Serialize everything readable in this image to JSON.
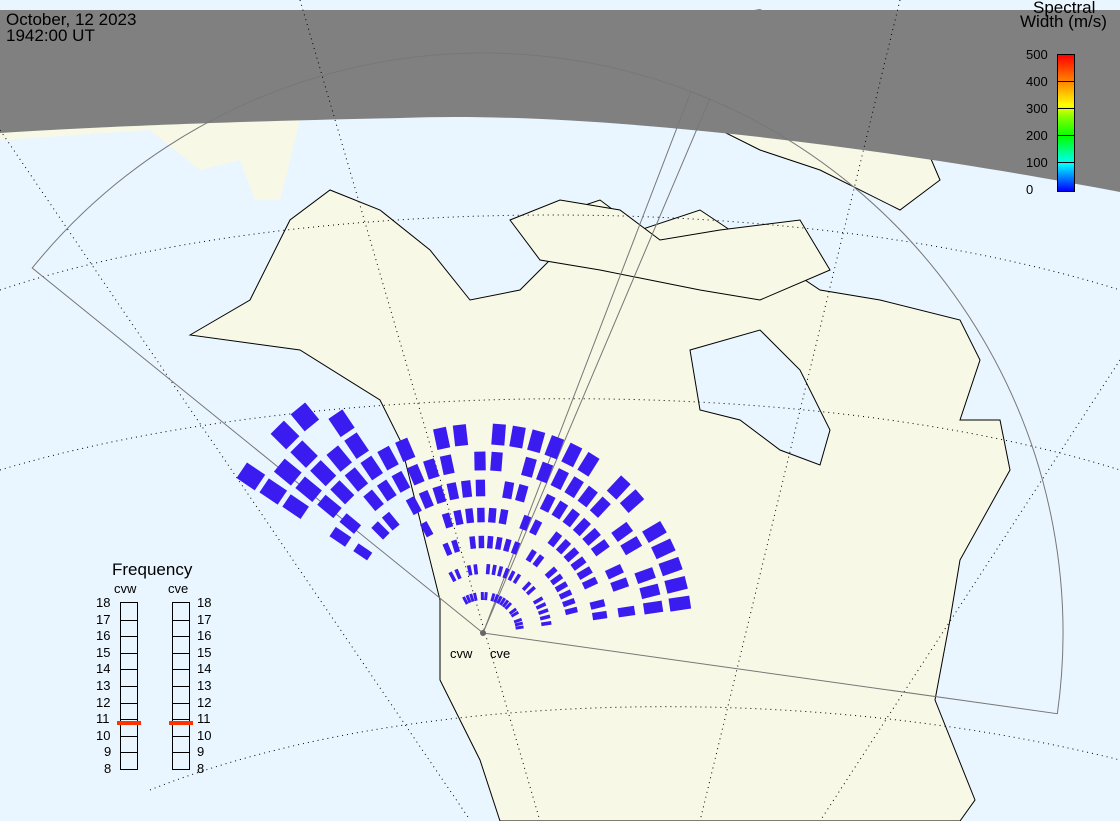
{
  "header": {
    "date": "October, 12 2023",
    "time": "1942:00 UT"
  },
  "colorbar": {
    "title_line1": "Spectral",
    "title_line2": "Width (m/s)",
    "ticks": [
      "500",
      "400",
      "300",
      "200",
      "100",
      "0"
    ],
    "range": [
      0,
      500
    ],
    "colors": [
      "#0000ff",
      "#00ffff",
      "#00ff00",
      "#ffff00",
      "#ff8800",
      "#ff0000"
    ]
  },
  "frequency": {
    "title": "Frequency",
    "radars": [
      {
        "name": "cvw",
        "value_mhz": 10.8
      },
      {
        "name": "cve",
        "value_mhz": 10.8
      }
    ],
    "ticks": [
      "18",
      "17",
      "16",
      "15",
      "14",
      "13",
      "12",
      "11",
      "10",
      "9",
      "8"
    ],
    "range": [
      8,
      18
    ],
    "marker_color": "#ff3300"
  },
  "map": {
    "radar_labels": [
      "cvw",
      "cve"
    ],
    "scatter_color": "#3a1cf0",
    "land_color": "#f8f8e6",
    "ocean_color": "#eaf6ff",
    "night_color": "#808080"
  }
}
